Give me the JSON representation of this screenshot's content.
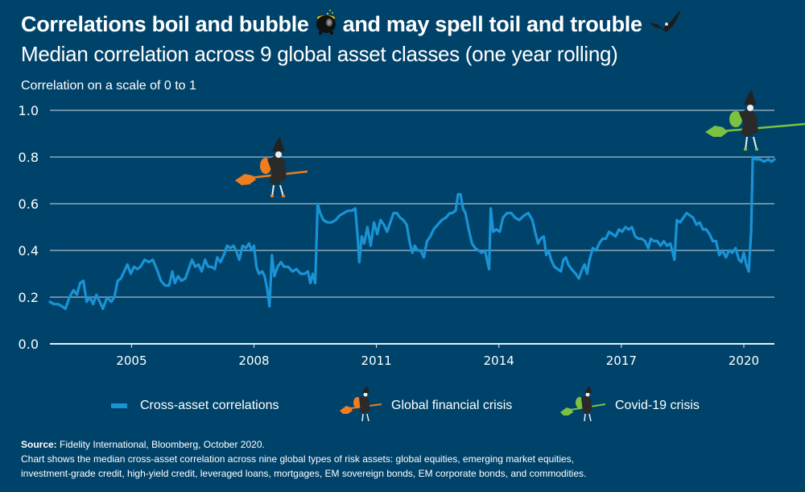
{
  "header": {
    "title_part1": "Correlations boil and bubble",
    "title_part2": "and may spell toil and trouble",
    "title_icons": [
      "cauldron-icon",
      "bat-icon"
    ],
    "subtitle": "Median correlation across 9 global asset classes (one year rolling)",
    "axis_caption": "Correlation on a scale of 0 to 1"
  },
  "colors": {
    "background": "#00436a",
    "line": "#1a93d5",
    "gridline": "#a9bccb",
    "gfc_witch": "#f07d1e",
    "covid_witch": "#7cc242"
  },
  "legend": {
    "items": [
      {
        "label": "Cross-asset correlations",
        "icon": "line-swatch"
      },
      {
        "label": "Global financial crisis",
        "icon": "orange-witch-icon"
      },
      {
        "label": "Covid-19 crisis",
        "icon": "green-witch-icon"
      }
    ]
  },
  "footer": {
    "source_label": "Source:",
    "source_text": "Fidelity International, Bloomberg, October 2020.",
    "note_line1": "Chart shows the median cross-asset correlation across nine global types of risk assets: global equities, emerging market equities,",
    "note_line2": "investment-grade credit, high-yield credit, leveraged loans, mortgages, EM sovereign bonds, EM corporate bonds, and commodities."
  },
  "chart_data": {
    "type": "line",
    "title": "Median correlation across 9 global asset classes (one year rolling)",
    "xlabel": "",
    "ylabel": "Correlation on a scale of 0 to 1",
    "xlim": [
      2003.0,
      2020.75
    ],
    "ylim": [
      0.0,
      1.0
    ],
    "x_ticks": [
      2005,
      2008,
      2011,
      2014,
      2017,
      2020
    ],
    "x_tick_labels": [
      "2005",
      "2008",
      "2011",
      "2014",
      "2017",
      "2020"
    ],
    "y_ticks": [
      0.0,
      0.2,
      0.4,
      0.6,
      0.8,
      1.0
    ],
    "y_tick_labels": [
      "0.0",
      "0.2",
      "0.4",
      "0.6",
      "0.8",
      "1.0"
    ],
    "grid": "horizontal",
    "legend_position": "bottom",
    "annotations": [
      {
        "label": "Global financial crisis",
        "x": 2008.8,
        "y": 0.6,
        "icon": "orange-witch-icon"
      },
      {
        "label": "Covid-19 crisis",
        "x": 2020.35,
        "y": 0.8,
        "icon": "green-witch-icon"
      }
    ],
    "series": [
      {
        "name": "Cross-asset correlations",
        "points": [
          [
            2003.0,
            0.18
          ],
          [
            2003.1,
            0.17
          ],
          [
            2003.2,
            0.17
          ],
          [
            2003.3,
            0.16
          ],
          [
            2003.38,
            0.15
          ],
          [
            2003.48,
            0.2
          ],
          [
            2003.58,
            0.23
          ],
          [
            2003.66,
            0.21
          ],
          [
            2003.74,
            0.26
          ],
          [
            2003.82,
            0.27
          ],
          [
            2003.9,
            0.18
          ],
          [
            2003.98,
            0.2
          ],
          [
            2004.06,
            0.17
          ],
          [
            2004.14,
            0.21
          ],
          [
            2004.22,
            0.18
          ],
          [
            2004.3,
            0.15
          ],
          [
            2004.4,
            0.2
          ],
          [
            2004.5,
            0.18
          ],
          [
            2004.58,
            0.2
          ],
          [
            2004.66,
            0.27
          ],
          [
            2004.74,
            0.28
          ],
          [
            2004.82,
            0.31
          ],
          [
            2004.9,
            0.34
          ],
          [
            2004.98,
            0.3
          ],
          [
            2005.06,
            0.33
          ],
          [
            2005.14,
            0.32
          ],
          [
            2005.22,
            0.33
          ],
          [
            2005.32,
            0.36
          ],
          [
            2005.42,
            0.35
          ],
          [
            2005.52,
            0.36
          ],
          [
            2005.62,
            0.32
          ],
          [
            2005.72,
            0.27
          ],
          [
            2005.82,
            0.25
          ],
          [
            2005.92,
            0.25
          ],
          [
            2006.0,
            0.31
          ],
          [
            2006.06,
            0.26
          ],
          [
            2006.14,
            0.29
          ],
          [
            2006.22,
            0.27
          ],
          [
            2006.32,
            0.28
          ],
          [
            2006.4,
            0.32
          ],
          [
            2006.48,
            0.36
          ],
          [
            2006.56,
            0.33
          ],
          [
            2006.64,
            0.34
          ],
          [
            2006.72,
            0.31
          ],
          [
            2006.8,
            0.36
          ],
          [
            2006.88,
            0.33
          ],
          [
            2006.96,
            0.33
          ],
          [
            2007.04,
            0.32
          ],
          [
            2007.1,
            0.37
          ],
          [
            2007.18,
            0.35
          ],
          [
            2007.26,
            0.38
          ],
          [
            2007.34,
            0.42
          ],
          [
            2007.42,
            0.41
          ],
          [
            2007.5,
            0.42
          ],
          [
            2007.56,
            0.4
          ],
          [
            2007.64,
            0.36
          ],
          [
            2007.72,
            0.42
          ],
          [
            2007.8,
            0.41
          ],
          [
            2007.88,
            0.43
          ],
          [
            2007.94,
            0.4
          ],
          [
            2008.0,
            0.42
          ],
          [
            2008.06,
            0.33
          ],
          [
            2008.12,
            0.3
          ],
          [
            2008.2,
            0.31
          ],
          [
            2008.26,
            0.29
          ],
          [
            2008.32,
            0.24
          ],
          [
            2008.38,
            0.16
          ],
          [
            2008.44,
            0.38
          ],
          [
            2008.5,
            0.29
          ],
          [
            2008.58,
            0.33
          ],
          [
            2008.66,
            0.35
          ],
          [
            2008.74,
            0.33
          ],
          [
            2008.84,
            0.33
          ],
          [
            2008.94,
            0.31
          ],
          [
            2009.04,
            0.32
          ],
          [
            2009.14,
            0.3
          ],
          [
            2009.24,
            0.3
          ],
          [
            2009.32,
            0.31
          ],
          [
            2009.38,
            0.26
          ],
          [
            2009.44,
            0.3
          ],
          [
            2009.5,
            0.26
          ],
          [
            2009.56,
            0.6
          ],
          [
            2009.62,
            0.56
          ],
          [
            2009.7,
            0.53
          ],
          [
            2009.8,
            0.52
          ],
          [
            2009.9,
            0.52
          ],
          [
            2010.0,
            0.53
          ],
          [
            2010.1,
            0.55
          ],
          [
            2010.2,
            0.56
          ],
          [
            2010.3,
            0.57
          ],
          [
            2010.4,
            0.57
          ],
          [
            2010.48,
            0.58
          ],
          [
            2010.54,
            0.46
          ],
          [
            2010.58,
            0.35
          ],
          [
            2010.64,
            0.46
          ],
          [
            2010.7,
            0.43
          ],
          [
            2010.78,
            0.5
          ],
          [
            2010.86,
            0.42
          ],
          [
            2010.94,
            0.52
          ],
          [
            2011.02,
            0.47
          ],
          [
            2011.1,
            0.53
          ],
          [
            2011.18,
            0.51
          ],
          [
            2011.26,
            0.48
          ],
          [
            2011.34,
            0.52
          ],
          [
            2011.42,
            0.56
          ],
          [
            2011.5,
            0.56
          ],
          [
            2011.58,
            0.54
          ],
          [
            2011.66,
            0.53
          ],
          [
            2011.74,
            0.51
          ],
          [
            2011.82,
            0.43
          ],
          [
            2011.88,
            0.39
          ],
          [
            2011.94,
            0.42
          ],
          [
            2012.0,
            0.4
          ],
          [
            2012.08,
            0.4
          ],
          [
            2012.16,
            0.37
          ],
          [
            2012.24,
            0.44
          ],
          [
            2012.32,
            0.46
          ],
          [
            2012.4,
            0.49
          ],
          [
            2012.5,
            0.51
          ],
          [
            2012.6,
            0.53
          ],
          [
            2012.7,
            0.54
          ],
          [
            2012.8,
            0.56
          ],
          [
            2012.86,
            0.56
          ],
          [
            2012.94,
            0.57
          ],
          [
            2013.0,
            0.64
          ],
          [
            2013.06,
            0.64
          ],
          [
            2013.12,
            0.58
          ],
          [
            2013.18,
            0.56
          ],
          [
            2013.26,
            0.49
          ],
          [
            2013.34,
            0.43
          ],
          [
            2013.42,
            0.41
          ],
          [
            2013.5,
            0.4
          ],
          [
            2013.58,
            0.39
          ],
          [
            2013.66,
            0.4
          ],
          [
            2013.72,
            0.35
          ],
          [
            2013.76,
            0.32
          ],
          [
            2013.8,
            0.58
          ],
          [
            2013.86,
            0.48
          ],
          [
            2013.94,
            0.49
          ],
          [
            2014.02,
            0.48
          ],
          [
            2014.1,
            0.54
          ],
          [
            2014.2,
            0.56
          ],
          [
            2014.3,
            0.56
          ],
          [
            2014.4,
            0.54
          ],
          [
            2014.5,
            0.53
          ],
          [
            2014.62,
            0.55
          ],
          [
            2014.72,
            0.56
          ],
          [
            2014.82,
            0.53
          ],
          [
            2014.9,
            0.47
          ],
          [
            2014.96,
            0.43
          ],
          [
            2015.02,
            0.45
          ],
          [
            2015.1,
            0.46
          ],
          [
            2015.16,
            0.38
          ],
          [
            2015.22,
            0.4
          ],
          [
            2015.28,
            0.36
          ],
          [
            2015.36,
            0.33
          ],
          [
            2015.44,
            0.32
          ],
          [
            2015.52,
            0.31
          ],
          [
            2015.58,
            0.36
          ],
          [
            2015.64,
            0.37
          ],
          [
            2015.7,
            0.34
          ],
          [
            2015.78,
            0.32
          ],
          [
            2015.88,
            0.3
          ],
          [
            2015.96,
            0.28
          ],
          [
            2016.04,
            0.32
          ],
          [
            2016.1,
            0.34
          ],
          [
            2016.16,
            0.3
          ],
          [
            2016.22,
            0.36
          ],
          [
            2016.3,
            0.41
          ],
          [
            2016.38,
            0.4
          ],
          [
            2016.46,
            0.43
          ],
          [
            2016.54,
            0.45
          ],
          [
            2016.62,
            0.45
          ],
          [
            2016.7,
            0.48
          ],
          [
            2016.78,
            0.47
          ],
          [
            2016.86,
            0.46
          ],
          [
            2016.94,
            0.49
          ],
          [
            2017.02,
            0.48
          ],
          [
            2017.1,
            0.5
          ],
          [
            2017.18,
            0.49
          ],
          [
            2017.26,
            0.5
          ],
          [
            2017.34,
            0.46
          ],
          [
            2017.42,
            0.45
          ],
          [
            2017.5,
            0.45
          ],
          [
            2017.58,
            0.44
          ],
          [
            2017.66,
            0.41
          ],
          [
            2017.72,
            0.45
          ],
          [
            2017.8,
            0.44
          ],
          [
            2017.88,
            0.44
          ],
          [
            2017.96,
            0.42
          ],
          [
            2018.04,
            0.44
          ],
          [
            2018.12,
            0.42
          ],
          [
            2018.2,
            0.43
          ],
          [
            2018.26,
            0.39
          ],
          [
            2018.3,
            0.36
          ],
          [
            2018.36,
            0.53
          ],
          [
            2018.44,
            0.52
          ],
          [
            2018.52,
            0.54
          ],
          [
            2018.6,
            0.56
          ],
          [
            2018.68,
            0.55
          ],
          [
            2018.76,
            0.54
          ],
          [
            2018.84,
            0.51
          ],
          [
            2018.92,
            0.52
          ],
          [
            2019.0,
            0.49
          ],
          [
            2019.08,
            0.49
          ],
          [
            2019.16,
            0.47
          ],
          [
            2019.24,
            0.44
          ],
          [
            2019.32,
            0.44
          ],
          [
            2019.4,
            0.38
          ],
          [
            2019.48,
            0.4
          ],
          [
            2019.56,
            0.37
          ],
          [
            2019.64,
            0.4
          ],
          [
            2019.72,
            0.39
          ],
          [
            2019.8,
            0.41
          ],
          [
            2019.88,
            0.36
          ],
          [
            2019.94,
            0.35
          ],
          [
            2020.0,
            0.39
          ],
          [
            2020.06,
            0.34
          ],
          [
            2020.12,
            0.31
          ],
          [
            2020.18,
            0.48
          ],
          [
            2020.22,
            0.8
          ],
          [
            2020.3,
            0.79
          ],
          [
            2020.4,
            0.79
          ],
          [
            2020.5,
            0.78
          ],
          [
            2020.6,
            0.79
          ],
          [
            2020.68,
            0.78
          ],
          [
            2020.75,
            0.79
          ]
        ]
      }
    ]
  }
}
